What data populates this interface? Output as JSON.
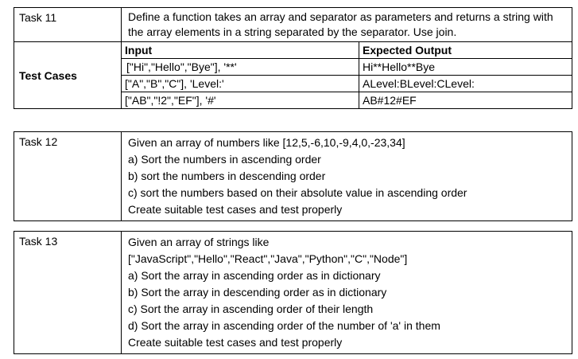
{
  "task11": {
    "label": "Task 11",
    "description_lines": [
      "Define a function takes an array and separator as parameters and returns a",
      "string with the array elements in a string separated by the separator. Use join."
    ],
    "test_cases_label": "Test Cases",
    "columns": [
      "Input",
      "Expected Output"
    ],
    "rows": [
      {
        "input": "[\"Hi\",\"Hello\",\"Bye\"], '**'",
        "output": "Hi**Hello**Bye"
      },
      {
        "input": "[\"A\",\"B\",\"C\"], 'Level:'",
        "output": "ALevel:BLevel:CLevel:"
      },
      {
        "input": "[\"AB\",\"!2\",\"EF\"], '#'",
        "output": "AB#12#EF"
      }
    ]
  },
  "task12": {
    "label": "Task 12",
    "lines": [
      "Given an array of numbers like [12,5,-6,10,-9,4,0,-23,34]",
      "a) Sort the numbers in ascending order",
      "b) sort the numbers in descending order",
      "c) sort the numbers based on their absolute value in ascending order",
      "Create suitable test cases and test properly"
    ]
  },
  "task13": {
    "label": "Task 13",
    "lines": [
      "Given an array of strings like",
      "[\"JavaScript\",\"Hello\",\"React\",\"Java\",\"Python\",\"C\",\"Node\"]",
      "a) Sort the array in ascending order as in dictionary",
      "b) Sort the array in descending order as in dictionary",
      "c) Sort the array  in ascending order of their length",
      "d) Sort the array  in ascending order of the number of 'a' in them",
      "Create suitable test cases and test properly"
    ]
  }
}
